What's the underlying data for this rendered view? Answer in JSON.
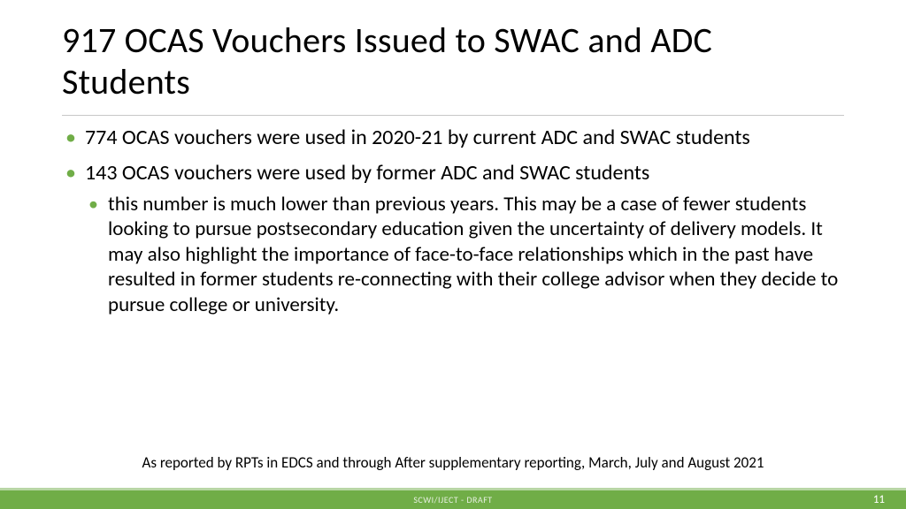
{
  "colors": {
    "accent": "#70ad47",
    "accent_light": "#b8d6a5",
    "divider": "#c7c7c7",
    "background": "#ffffff",
    "text": "#000000",
    "footer_text": "#e6efe0",
    "page_num": "#ffffff"
  },
  "typography": {
    "title_fontsize": 40,
    "body_fontsize": 24,
    "sub_fontsize": 23,
    "footnote_fontsize": 17,
    "footer_fontsize": 10
  },
  "title": "917 OCAS Vouchers Issued to SWAC and ADC Students",
  "bullets": [
    {
      "text": "774 OCAS vouchers were used in 2020-21 by current ADC and SWAC students",
      "children": []
    },
    {
      "text": "143 OCAS vouchers were used by former ADC and SWAC students",
      "children": [
        "this number is much lower than previous years. This may be a case of fewer students looking to pursue postsecondary education given the uncertainty of delivery models. It may also highlight the importance of face-to-face relationships which in the past have resulted in former students re-connecting with their college advisor when they decide to pursue college or university."
      ]
    }
  ],
  "footnote": "As reported by RPTs in EDCS and through After supplementary reporting, March, July and August 2021",
  "footer": {
    "label": "SCWI/IJECT - DRAFT",
    "page": "11"
  }
}
